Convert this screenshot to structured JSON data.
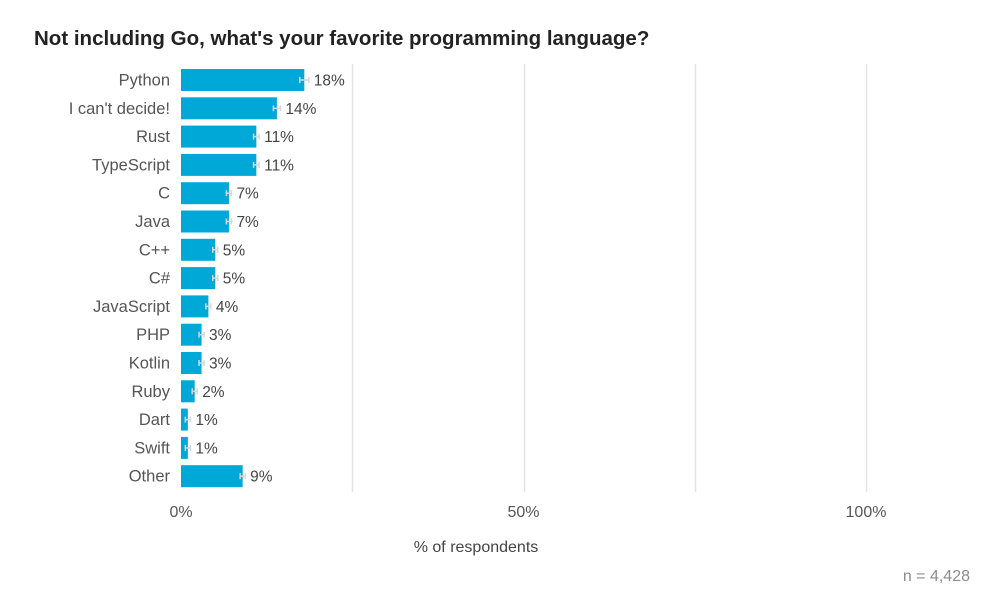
{
  "chart_data": {
    "type": "bar",
    "orientation": "horizontal",
    "title": "Not including Go, what's your favorite programming language?",
    "xlabel": "% of respondents",
    "ylabel": "",
    "xlim": [
      0,
      100
    ],
    "x_ticks": [
      0,
      50,
      100
    ],
    "x_tick_labels": [
      "0%",
      "50%",
      "100%"
    ],
    "categories": [
      "Python",
      "I can't decide!",
      "Rust",
      "TypeScript",
      "C",
      "Java",
      "C++",
      "C#",
      "JavaScript",
      "PHP",
      "Kotlin",
      "Ruby",
      "Dart",
      "Swift",
      "Other"
    ],
    "values": [
      18,
      14,
      11,
      11,
      7,
      7,
      5,
      5,
      4,
      3,
      3,
      2,
      1,
      1,
      9
    ],
    "value_labels": [
      "18%",
      "14%",
      "11%",
      "11%",
      "7%",
      "7%",
      "5%",
      "5%",
      "4%",
      "3%",
      "3%",
      "2%",
      "1%",
      "1%",
      "9%"
    ],
    "error_bars": true,
    "grid": true,
    "sample_size_label": "n =  4,428",
    "colors": {
      "bar": "#00a8d8",
      "gridline": "#e3e3e3",
      "error_bar": "#d6d6d6"
    }
  }
}
